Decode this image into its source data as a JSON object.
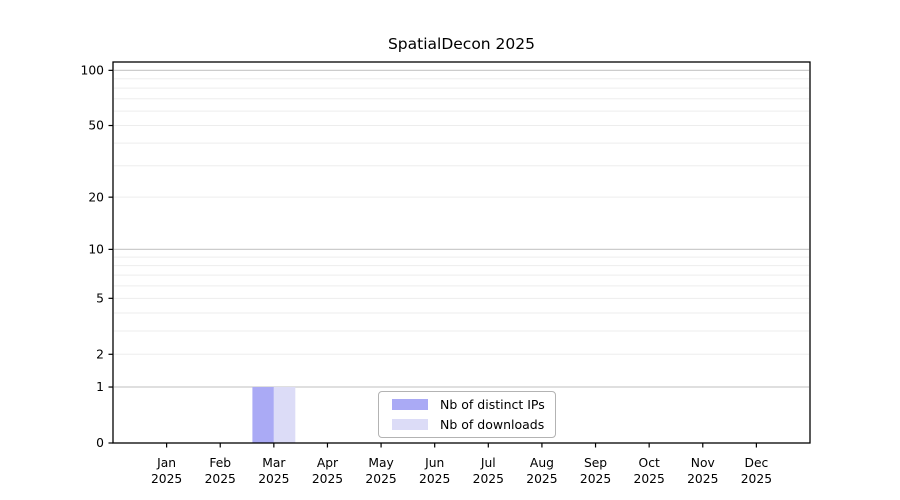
{
  "chart_data": {
    "type": "bar",
    "title": "SpatialDecon 2025",
    "categories": [
      "Jan",
      "Feb",
      "Mar",
      "Apr",
      "May",
      "Jun",
      "Jul",
      "Aug",
      "Sep",
      "Oct",
      "Nov",
      "Dec"
    ],
    "category_sublabel": "2025",
    "series": [
      {
        "name": "Nb of distinct IPs",
        "color": "#aaaaf5",
        "values": [
          0,
          0,
          1,
          0,
          0,
          0,
          0,
          0,
          0,
          0,
          0,
          0
        ]
      },
      {
        "name": "Nb of downloads",
        "color": "#dcdcf7",
        "values": [
          0,
          0,
          1,
          0,
          0,
          0,
          0,
          0,
          0,
          0,
          0,
          0
        ]
      }
    ],
    "yscale": "log1p",
    "yticks": [
      0,
      1,
      2,
      5,
      10,
      20,
      50,
      100
    ],
    "ymax": 111,
    "grid": {
      "major_values": [
        1,
        10,
        100
      ],
      "minor_values": [
        2,
        3,
        4,
        5,
        6,
        7,
        8,
        9,
        20,
        30,
        40,
        50,
        60,
        70,
        80,
        90
      ],
      "major_color": "#cccccc",
      "minor_color": "#ededed"
    },
    "axis_color": "#000000",
    "tick_label_color": "#000000",
    "legend_position": "lower center",
    "xlabel": "",
    "ylabel": ""
  }
}
